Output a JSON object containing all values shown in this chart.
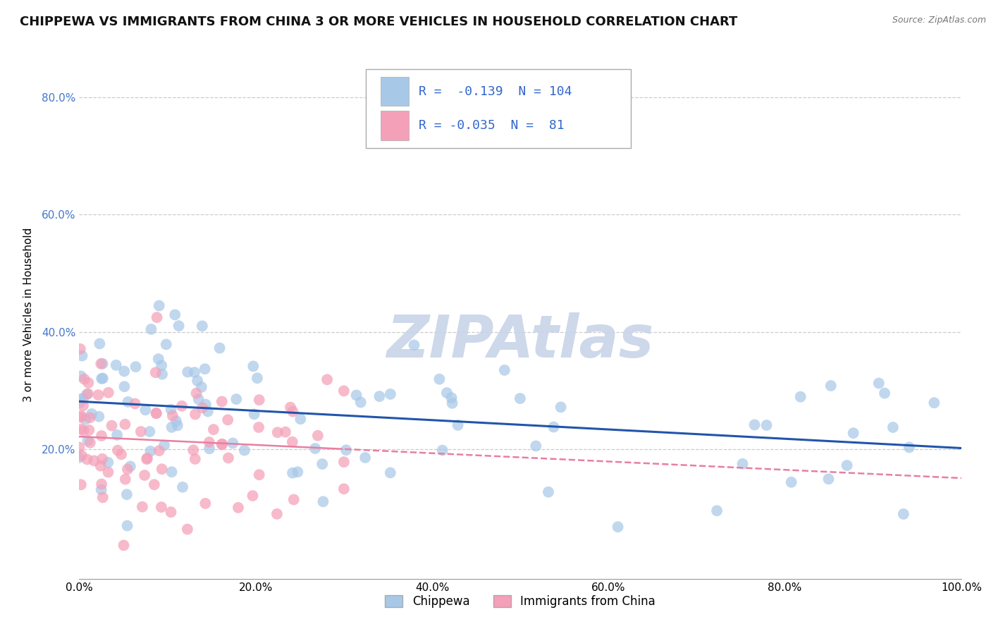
{
  "title": "CHIPPEWA VS IMMIGRANTS FROM CHINA 3 OR MORE VEHICLES IN HOUSEHOLD CORRELATION CHART",
  "source": "Source: ZipAtlas.com",
  "ylabel": "3 or more Vehicles in Household",
  "xlim": [
    0,
    1.0
  ],
  "ylim": [
    -0.02,
    0.88
  ],
  "xtick_labels": [
    "0.0%",
    "20.0%",
    "40.0%",
    "60.0%",
    "80.0%",
    "100.0%"
  ],
  "xtick_vals": [
    0,
    0.2,
    0.4,
    0.6,
    0.8,
    1.0
  ],
  "ytick_labels": [
    "20.0%",
    "40.0%",
    "60.0%",
    "80.0%"
  ],
  "ytick_vals": [
    0.2,
    0.4,
    0.6,
    0.8
  ],
  "legend_labels": [
    "Chippewa",
    "Immigrants from China"
  ],
  "R_blue": -0.139,
  "N_blue": 104,
  "R_pink": -0.035,
  "N_pink": 81,
  "blue_color": "#a8c8e8",
  "pink_color": "#f4a0b8",
  "blue_line_color": "#2255aa",
  "pink_line_color": "#e87fa0",
  "watermark": "ZIPAtlas",
  "watermark_color": "#c8d4e8",
  "background_color": "#ffffff",
  "grid_color": "#cccccc",
  "title_fontsize": 13,
  "axis_fontsize": 11,
  "legend_fontsize": 13,
  "seed": 7
}
